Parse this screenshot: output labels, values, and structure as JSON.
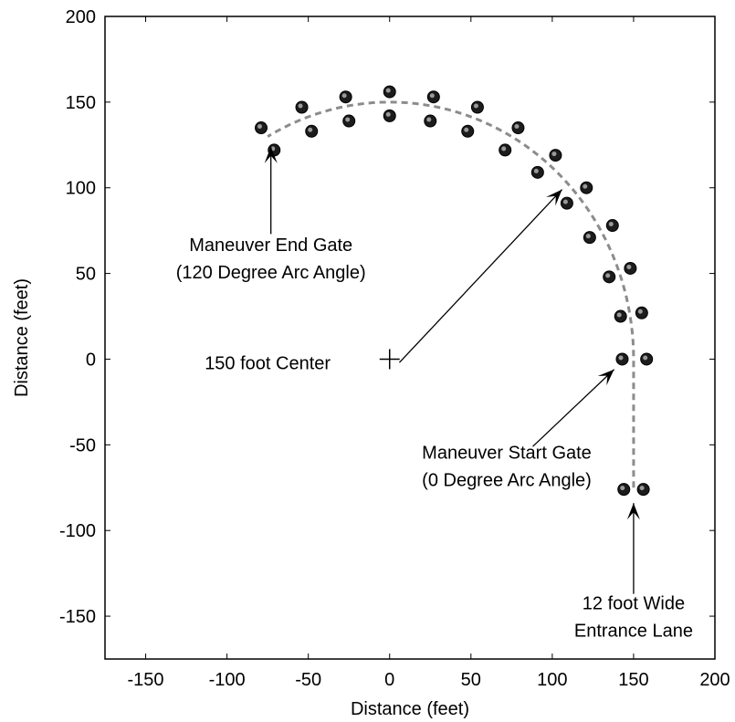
{
  "chart_data": {
    "type": "scatter",
    "xlabel": "Distance (feet)",
    "ylabel": "Distance (feet)",
    "xlim": [
      -175,
      200
    ],
    "ylim": [
      -175,
      200
    ],
    "xticks": [
      -150,
      -100,
      -50,
      0,
      50,
      100,
      150,
      200
    ],
    "yticks": [
      -150,
      -100,
      -50,
      0,
      50,
      100,
      150,
      200
    ],
    "xtick_labels": [
      "-150",
      "-100",
      "-50",
      "0",
      "50",
      "100",
      "150",
      "200"
    ],
    "ytick_labels": [
      "-150",
      "-100",
      "-50",
      "0",
      "50",
      "100",
      "150",
      "200"
    ],
    "grid": false,
    "colors": {
      "path": "#8c8c8c",
      "cone": "#1c1c1c",
      "cone_highlight": "#d0d0d0",
      "axis": "#000000"
    },
    "path": {
      "center": [
        0,
        0
      ],
      "radius": 150,
      "arc_start_deg": 0,
      "arc_end_deg": 120,
      "lane_x": 150,
      "lane_y_start": -75,
      "lane_y_end": 0
    },
    "cones": [
      {
        "x": 144,
        "y": -76
      },
      {
        "x": 156,
        "y": -76
      },
      {
        "x": 143,
        "y": 0
      },
      {
        "x": 158,
        "y": 0
      },
      {
        "x": 142,
        "y": 25
      },
      {
        "x": 155,
        "y": 27
      },
      {
        "x": 135,
        "y": 48
      },
      {
        "x": 148,
        "y": 53
      },
      {
        "x": 123,
        "y": 71
      },
      {
        "x": 137,
        "y": 78
      },
      {
        "x": 109,
        "y": 91
      },
      {
        "x": 121,
        "y": 100
      },
      {
        "x": 91,
        "y": 109
      },
      {
        "x": 102,
        "y": 119
      },
      {
        "x": 71,
        "y": 122
      },
      {
        "x": 79,
        "y": 135
      },
      {
        "x": 48,
        "y": 133
      },
      {
        "x": 54,
        "y": 147
      },
      {
        "x": 25,
        "y": 139
      },
      {
        "x": 27,
        "y": 153
      },
      {
        "x": 0,
        "y": 142
      },
      {
        "x": 0,
        "y": 156
      },
      {
        "x": -25,
        "y": 139
      },
      {
        "x": -27,
        "y": 153
      },
      {
        "x": -48,
        "y": 133
      },
      {
        "x": -54,
        "y": 147
      },
      {
        "x": -71,
        "y": 122
      },
      {
        "x": -79,
        "y": 135
      }
    ],
    "center_marker": {
      "x": 0,
      "y": 0
    },
    "annotations": [
      {
        "id": "end-gate",
        "lines": [
          "Maneuver End Gate",
          "(120 Degree Arc Angle)"
        ],
        "text_x": -73,
        "text_y": 63,
        "arrow_from": [
          -73,
          73
        ],
        "arrow_to": [
          -73,
          124
        ]
      },
      {
        "id": "center",
        "lines": [
          "150 foot Center"
        ],
        "text_x": -75,
        "text_y": -6,
        "arrow_from": [
          6,
          -2
        ],
        "arrow_to": [
          106,
          99
        ]
      },
      {
        "id": "start-gate",
        "lines": [
          "Maneuver Start Gate",
          "(0 Degree Arc Angle)"
        ],
        "text_x": 72,
        "text_y": -58,
        "arrow_from": [
          88,
          -51
        ],
        "arrow_to": [
          138,
          -6
        ]
      },
      {
        "id": "entrance",
        "lines": [
          "12 foot Wide",
          "Entrance Lane"
        ],
        "text_x": 150,
        "text_y": -146,
        "arrow_from": [
          150,
          -137
        ],
        "arrow_to": [
          150,
          -84
        ]
      }
    ]
  }
}
